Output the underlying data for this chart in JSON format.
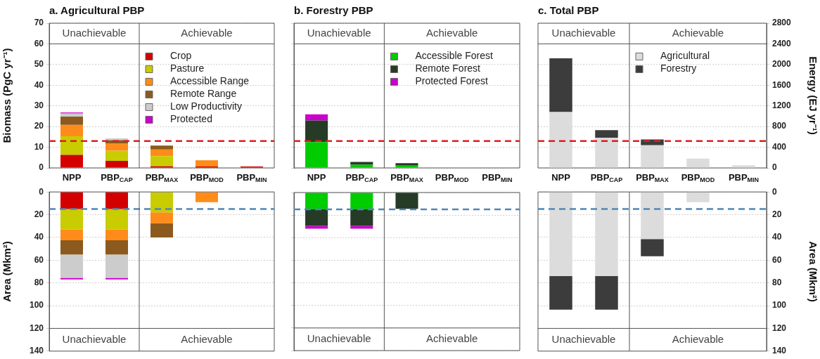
{
  "chart_data": [
    {
      "type": "bar",
      "title": "a. Agricultural PBP",
      "ylabel": "Biomass (PgC yr⁻¹)",
      "categories": [
        "NPP",
        "PBP$_{CAP}$",
        "PBP$_{MAX}$",
        "PBP$_{MOD}$",
        "PBP$_{MIN}$"
      ],
      "stacked": true,
      "ylim": [
        0,
        70
      ],
      "yticks": [
        0,
        10,
        20,
        30,
        40,
        50,
        60,
        70
      ],
      "grid": "y",
      "legend": "top right",
      "annotations": [
        "Unachievable",
        "Achievable"
      ],
      "ref_lines": [
        {
          "axis": "y",
          "value": 13,
          "color": "#e41a1c",
          "line_style": "dashed"
        }
      ],
      "series": [
        {
          "name": "Crop",
          "color": "#d40000",
          "values": [
            6.3,
            3.4,
            0.8,
            0.7,
            0.7
          ]
        },
        {
          "name": "Pasture",
          "color": "#c8cc00",
          "values": [
            9,
            4.9,
            4.9,
            null,
            null
          ]
        },
        {
          "name": "Accessible Range",
          "color": "#ff8c1a",
          "values": [
            5.5,
            3.4,
            3.2,
            3.0,
            null
          ]
        },
        {
          "name": "Remote Range",
          "color": "#8c5a1e",
          "values": [
            4,
            1.7,
            1.9,
            null,
            null
          ]
        },
        {
          "name": "Low Productivity",
          "color": "#cccccc",
          "values": [
            1.5,
            0.9,
            null,
            null,
            null
          ]
        },
        {
          "name": "Protected",
          "color": "#cc00cc",
          "values": [
            0.5,
            null,
            null,
            null,
            null
          ]
        }
      ]
    },
    {
      "type": "bar",
      "title": "b. Forestry PBP",
      "categories": [
        "NPP",
        "PBP$_{CAP}$",
        "PBP$_{MAX}$",
        "PBP$_{MOD}$",
        "PBP$_{MIN}$"
      ],
      "stacked": true,
      "ylim": [
        0,
        70
      ],
      "yticks": [
        0,
        10,
        20,
        30,
        40,
        50,
        60,
        70
      ],
      "tick_labels": "x",
      "grid": "y",
      "legend": "top right",
      "annotations": [
        "Unachievable",
        "Achievable"
      ],
      "ref_lines": [
        {
          "axis": "y",
          "value": 13,
          "color": "#e41a1c",
          "line_style": "dashed"
        }
      ],
      "series": [
        {
          "name": "Accessible Forest",
          "color": "#00cc00",
          "values": [
            12.5,
            1.5,
            1.1,
            null,
            null
          ]
        },
        {
          "name": "Remote Forest",
          "color": "#263b26",
          "values": [
            10.4,
            1.4,
            1.2,
            null,
            null
          ]
        },
        {
          "name": "Protected Forest",
          "color": "#cc00cc",
          "values": [
            3,
            null,
            null,
            null,
            null
          ]
        }
      ]
    },
    {
      "type": "bar",
      "title": "c. Total PBP",
      "y2label": "Energy (EJ yr⁻¹)",
      "categories": [
        "NPP",
        "PBP$_{CAP}$",
        "PBP$_{MAX}$",
        "PBP$_{MOD}$",
        "PBP$_{MIN}$"
      ],
      "stacked": true,
      "y2lim": [
        0,
        2800
      ],
      "y2ticks": [
        0,
        400,
        800,
        1200,
        1600,
        2000,
        2400,
        2800
      ],
      "grid": "y",
      "legend": "top right",
      "annotations": [
        "Unachievable",
        "Achievable"
      ],
      "ref_lines": [
        {
          "axis": "y2",
          "value": 520,
          "color": "#e41a1c",
          "line_style": "dashed"
        }
      ],
      "series": [
        {
          "name": "Agricultural",
          "color": "#dcdcdc",
          "axis": "y2",
          "values": [
            1080,
            580,
            440,
            180,
            50
          ]
        },
        {
          "name": "Forestry",
          "color": "#3c3c3c",
          "axis": "y2",
          "values": [
            1040,
            150,
            110,
            null,
            null
          ]
        }
      ]
    },
    {
      "type": "bar",
      "ylabel": "Area (Mkm²)",
      "categories": [
        null,
        null,
        null,
        null,
        null
      ],
      "stacked": true,
      "ylim": [
        140,
        0
      ],
      "yticks": [
        0,
        20,
        40,
        60,
        80,
        100,
        120,
        140
      ],
      "tick_labels": "y",
      "grid": "y",
      "annotations": [
        "Unachievable",
        "Achievable"
      ],
      "ref_lines": [
        {
          "axis": "y",
          "value": 15,
          "color": "#4f87b8",
          "line_style": "dashed"
        }
      ],
      "series": [
        {
          "color": "#d40000",
          "values": [
            15,
            15,
            null,
            null,
            null
          ]
        },
        {
          "color": "#c8cc00",
          "values": [
            18,
            18,
            18,
            null,
            null
          ]
        },
        {
          "color": "#ff8c1a",
          "values": [
            9.5,
            9.5,
            9.5,
            9,
            null
          ]
        },
        {
          "color": "#8c5a1e",
          "values": [
            12.5,
            12.5,
            12.5,
            null,
            null
          ]
        },
        {
          "color": "#cccccc",
          "values": [
            20.5,
            20.5,
            null,
            null,
            null
          ]
        },
        {
          "color": "#cc00cc",
          "values": [
            1.5,
            1.5,
            null,
            null,
            null
          ]
        }
      ]
    },
    {
      "type": "bar",
      "categories": [
        null,
        null,
        null,
        null,
        null
      ],
      "stacked": true,
      "ylim": [
        140,
        0
      ],
      "yticks": [
        0,
        20,
        40,
        60,
        80,
        100,
        120,
        140
      ],
      "tick_labels": false,
      "grid": "y",
      "annotations": [
        "Unachievable",
        "Achievable"
      ],
      "ref_lines": [
        {
          "axis": "y",
          "value": 15,
          "color": "#4f87b8",
          "line_style": "dashed"
        }
      ],
      "series": [
        {
          "color": "#00cc00",
          "values": [
            15,
            15,
            null,
            null,
            null
          ]
        },
        {
          "color": "#263b26",
          "values": [
            14.5,
            14.5,
            14.5,
            null,
            null
          ]
        },
        {
          "color": "#cc00cc",
          "values": [
            2.5,
            2.5,
            null,
            null,
            null
          ]
        }
      ]
    },
    {
      "type": "bar",
      "y2label": "Area (Mkm²)",
      "categories": [
        null,
        null,
        null,
        null,
        null
      ],
      "stacked": true,
      "y2lim": [
        140,
        0
      ],
      "y2ticks": [
        0,
        20,
        40,
        60,
        80,
        100,
        120,
        140
      ],
      "tick_labels": "y2",
      "grid": "y",
      "annotations": [
        "Unachievable",
        "Achievable"
      ],
      "ref_lines": [
        {
          "axis": "y2",
          "value": 15,
          "color": "#4f87b8",
          "line_style": "dashed"
        }
      ],
      "series": [
        {
          "color": "#dcdcdc",
          "axis": "y2",
          "values": [
            74,
            74,
            41.5,
            9,
            null
          ]
        },
        {
          "color": "#3c3c3c",
          "axis": "y2",
          "values": [
            29.5,
            29.5,
            15,
            null,
            null
          ]
        }
      ]
    }
  ]
}
